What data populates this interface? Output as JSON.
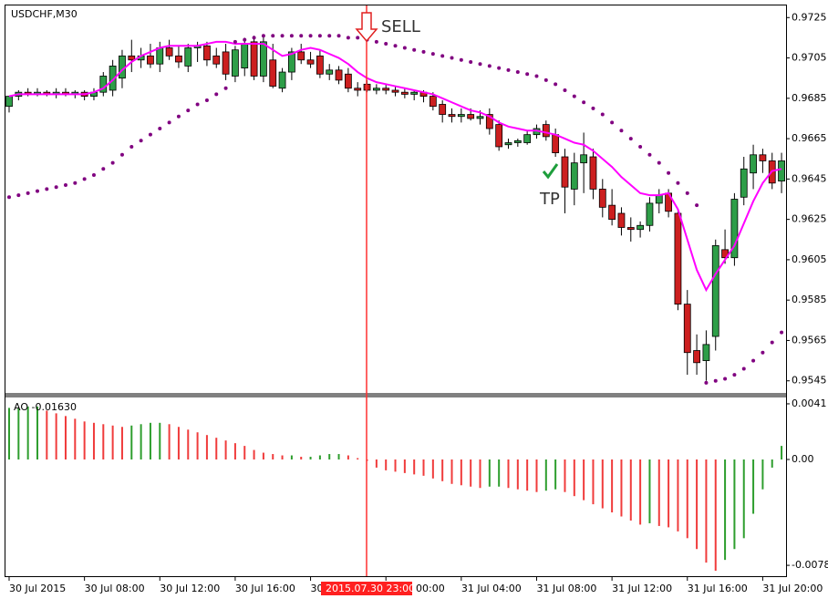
{
  "chart_data": [
    {
      "type": "candlestick",
      "title": "USDCHF,M30",
      "categories": [
        "30 Jul 2015",
        null,
        null,
        null,
        null,
        null,
        null,
        null,
        "30 Jul 08:00",
        null,
        null,
        null,
        null,
        null,
        null,
        null,
        "30 Jul 12:00",
        null,
        null,
        null,
        null,
        null,
        null,
        null,
        "30 Jul 16:00",
        null,
        null,
        null,
        null,
        null,
        null,
        null,
        "30",
        null,
        null,
        null,
        null,
        null,
        null,
        null,
        "00:00",
        null,
        null,
        null,
        null,
        null,
        null,
        null,
        "31 Jul 04:00",
        null,
        null,
        null,
        null,
        null,
        null,
        null,
        "31 Jul 08:00",
        null,
        null,
        null,
        null,
        null,
        null,
        null,
        "31 Jul 12:00",
        null,
        null,
        null,
        null,
        null,
        null,
        null,
        "31 Jul 16:00",
        null,
        null,
        null,
        null,
        null,
        null,
        null,
        "31 Jul 20:00",
        null,
        null
      ],
      "open": [
        0.9681,
        0.9686,
        0.9688,
        0.9687,
        0.9688,
        0.9687,
        0.9688,
        0.9687,
        0.9688,
        0.9686,
        0.9688,
        0.9689,
        0.9695,
        0.9706,
        0.9704,
        0.9706,
        0.9702,
        0.971,
        0.9706,
        0.9701,
        0.971,
        0.9711,
        0.9706,
        0.9708,
        0.9696,
        0.97,
        0.9713,
        0.9696,
        0.9704,
        0.969,
        0.9698,
        0.9708,
        0.9704,
        0.9706,
        0.9697,
        0.9699,
        0.9697,
        0.969,
        0.9692,
        0.9689,
        0.969,
        0.9689,
        0.9688,
        0.9687,
        0.9688,
        0.9686,
        0.9682,
        0.9677,
        0.9676,
        0.9677,
        0.9675,
        0.9677,
        0.9672,
        0.9662,
        0.9663,
        0.9663,
        0.9667,
        0.9672,
        0.9667,
        0.9656,
        0.964,
        0.9653,
        0.9656,
        0.964,
        0.9632,
        0.9628,
        0.9621,
        0.962,
        0.9622,
        0.9633,
        0.9638,
        0.9628,
        0.9583,
        0.956,
        0.9555,
        0.9567,
        0.961,
        0.9606,
        0.9636,
        0.9648,
        0.9657,
        0.9654,
        0.9644
      ],
      "high": [
        0.9686,
        0.9689,
        0.969,
        0.969,
        0.9689,
        0.969,
        0.969,
        0.9689,
        0.9689,
        0.969,
        0.9698,
        0.9704,
        0.9709,
        0.9714,
        0.971,
        0.9712,
        0.9713,
        0.9714,
        0.9711,
        0.9712,
        0.9713,
        0.9713,
        0.971,
        0.9712,
        0.9711,
        0.9715,
        0.9716,
        0.9716,
        0.9712,
        0.97,
        0.971,
        0.9712,
        0.9708,
        0.9709,
        0.9702,
        0.9701,
        0.97,
        0.9693,
        0.9694,
        0.9692,
        0.9692,
        0.9691,
        0.969,
        0.9689,
        0.9689,
        0.9688,
        0.9684,
        0.968,
        0.968,
        0.968,
        0.9679,
        0.968,
        0.9674,
        0.9665,
        0.9665,
        0.9669,
        0.9672,
        0.9674,
        0.967,
        0.966,
        0.9658,
        0.9668,
        0.966,
        0.9645,
        0.964,
        0.9631,
        0.9626,
        0.9624,
        0.9636,
        0.964,
        0.964,
        0.963,
        0.959,
        0.9568,
        0.957,
        0.9615,
        0.962,
        0.9638,
        0.9656,
        0.9662,
        0.966,
        0.9658,
        0.9658
      ],
      "low": [
        0.9678,
        0.9684,
        0.9686,
        0.9686,
        0.9686,
        0.9685,
        0.9686,
        0.9685,
        0.9684,
        0.9684,
        0.9686,
        0.9686,
        0.969,
        0.9698,
        0.97,
        0.97,
        0.9698,
        0.9704,
        0.97,
        0.9698,
        0.9703,
        0.9701,
        0.97,
        0.9694,
        0.9693,
        0.9696,
        0.9694,
        0.9693,
        0.969,
        0.9688,
        0.9694,
        0.9702,
        0.97,
        0.9695,
        0.9694,
        0.9692,
        0.9688,
        0.9686,
        0.9688,
        0.9687,
        0.9687,
        0.9686,
        0.9685,
        0.9684,
        0.9683,
        0.9679,
        0.9673,
        0.9673,
        0.9673,
        0.9674,
        0.9672,
        0.9667,
        0.9659,
        0.966,
        0.9661,
        0.9662,
        0.9665,
        0.9664,
        0.9656,
        0.9628,
        0.9632,
        0.9638,
        0.9635,
        0.9626,
        0.9622,
        0.9617,
        0.9614,
        0.9616,
        0.9619,
        0.9628,
        0.9626,
        0.958,
        0.9548,
        0.9548,
        0.9545,
        0.956,
        0.9603,
        0.9602,
        0.9632,
        0.964,
        0.9648,
        0.964,
        0.9638
      ],
      "close": [
        0.9686,
        0.9688,
        0.9687,
        0.9688,
        0.9687,
        0.9688,
        0.9687,
        0.9688,
        0.9686,
        0.9688,
        0.9696,
        0.9701,
        0.9706,
        0.9704,
        0.9706,
        0.9702,
        0.971,
        0.9706,
        0.9703,
        0.971,
        0.9711,
        0.9704,
        0.9702,
        0.9697,
        0.9709,
        0.9712,
        0.9696,
        0.9713,
        0.9691,
        0.9698,
        0.9708,
        0.9704,
        0.9702,
        0.9697,
        0.9699,
        0.9694,
        0.969,
        0.9689,
        0.9689,
        0.969,
        0.9689,
        0.9688,
        0.9687,
        0.9688,
        0.9686,
        0.9681,
        0.9677,
        0.9676,
        0.9677,
        0.9675,
        0.9676,
        0.967,
        0.9661,
        0.9663,
        0.9664,
        0.9667,
        0.967,
        0.9666,
        0.9658,
        0.9641,
        0.9653,
        0.9657,
        0.964,
        0.9631,
        0.9625,
        0.9621,
        0.962,
        0.9622,
        0.9633,
        0.9637,
        0.9629,
        0.9583,
        0.9559,
        0.9554,
        0.9563,
        0.9612,
        0.9606,
        0.9635,
        0.965,
        0.9657,
        0.9654,
        0.9643,
        0.9654
      ],
      "up_color": "#2e9e48",
      "down_color": "#cc1f1f",
      "overlays": [
        {
          "type": "line",
          "color": "#ff00ff",
          "values": [
            0.9686,
            0.9687,
            0.9687,
            0.9687,
            0.9687,
            0.9687,
            0.9687,
            0.9687,
            0.9687,
            0.9688,
            0.969,
            0.9694,
            0.9699,
            0.9703,
            0.9706,
            0.9708,
            0.971,
            0.9711,
            0.9711,
            0.9711,
            0.9711,
            0.9712,
            0.9713,
            0.9713,
            0.9712,
            0.9712,
            0.9712,
            0.9712,
            0.9709,
            0.9706,
            0.9707,
            0.9709,
            0.971,
            0.9709,
            0.9707,
            0.9705,
            0.9702,
            0.9698,
            0.9695,
            0.9693,
            0.9692,
            0.9691,
            0.969,
            0.9689,
            0.9688,
            0.9687,
            0.9685,
            0.9683,
            0.9681,
            0.9679,
            0.9678,
            0.9676,
            0.9673,
            0.9671,
            0.967,
            0.9669,
            0.9669,
            0.9668,
            0.9667,
            0.9665,
            0.9663,
            0.9662,
            0.9659,
            0.9655,
            0.9651,
            0.9646,
            0.9642,
            0.9638,
            0.9637,
            0.9637,
            0.9638,
            0.963,
            0.9615,
            0.96,
            0.959,
            0.9598,
            0.9605,
            0.9612,
            0.9623,
            0.9634,
            0.9643,
            0.9649,
            0.965
          ]
        },
        {
          "type": "dots",
          "color": "#800080",
          "values": [
            0.9636,
            0.9637,
            0.9638,
            0.9639,
            0.964,
            0.9641,
            0.9642,
            0.9643,
            0.9645,
            0.9647,
            0.965,
            0.9653,
            0.9657,
            0.9661,
            0.9664,
            0.9667,
            0.967,
            0.9673,
            0.9676,
            0.9679,
            0.9682,
            0.9684,
            0.9687,
            0.969,
            0.9713,
            0.9714,
            0.9715,
            0.9716,
            0.9716,
            0.9716,
            0.9716,
            0.9716,
            0.9716,
            0.9716,
            0.9716,
            0.9716,
            0.9715,
            0.9715,
            0.9714,
            0.9713,
            0.9712,
            0.9711,
            0.971,
            0.9709,
            0.9708,
            0.9707,
            0.9706,
            0.9705,
            0.9704,
            0.9703,
            0.9702,
            0.9701,
            0.97,
            0.9699,
            0.9698,
            0.9697,
            0.9696,
            0.9694,
            0.9692,
            0.9689,
            0.9686,
            0.9683,
            0.968,
            0.9677,
            0.9673,
            0.9669,
            0.9665,
            0.9661,
            0.9657,
            0.9653,
            0.9648,
            0.9643,
            0.9638,
            0.9632,
            0.9544,
            0.9545,
            0.9546,
            0.9548,
            0.9551,
            0.9555,
            0.9559,
            0.9564,
            0.9569
          ]
        }
      ],
      "ylim": [
        0.9539,
        0.9731
      ],
      "yticks": [
        0.9725,
        0.9705,
        0.9685,
        0.9665,
        0.9645,
        0.9625,
        0.9605,
        0.9585,
        0.9565,
        0.9545
      ],
      "sell_label": "SELL",
      "tp_label": "TP",
      "cursor_label": "2015.07.30 23:00"
    },
    {
      "type": "bar",
      "title": "AO -0.01630",
      "values": [
        0.0038,
        0.0038,
        0.0039,
        0.0039,
        0.0036,
        0.0034,
        0.0032,
        0.003,
        0.0028,
        0.0027,
        0.0026,
        0.0025,
        0.0024,
        0.0025,
        0.0026,
        0.0027,
        0.0027,
        0.0026,
        0.0024,
        0.0022,
        0.002,
        0.0018,
        0.0016,
        0.0014,
        0.0012,
        0.001,
        0.0007,
        0.0005,
        0.0004,
        0.0003,
        0.0003,
        0.0002,
        0.0002,
        0.0003,
        0.0004,
        0.0004,
        0.0003,
        0.0001,
        -0.0001,
        -0.0006,
        -0.0008,
        -0.0009,
        -0.001,
        -0.0011,
        -0.0012,
        -0.0014,
        -0.0016,
        -0.0018,
        -0.0019,
        -0.002,
        -0.0021,
        -0.002,
        -0.002,
        -0.0021,
        -0.0022,
        -0.0023,
        -0.0024,
        -0.0023,
        -0.0022,
        -0.0024,
        -0.0027,
        -0.003,
        -0.0033,
        -0.0036,
        -0.0039,
        -0.0042,
        -0.0045,
        -0.0048,
        -0.0047,
        -0.0049,
        -0.005,
        -0.0053,
        -0.0058,
        -0.0066,
        -0.0076,
        -0.0082,
        -0.0074,
        -0.0066,
        -0.0058,
        -0.004,
        -0.0022,
        -0.0006,
        0.001
      ],
      "up_color": "#2e9e2e",
      "down_color": "#f03c3c",
      "ylim": [
        -0.0086,
        0.0045
      ],
      "yticks": [
        0.0041,
        {
          "value": 0,
          "label": "0.00"
        },
        -0.0078
      ]
    }
  ]
}
